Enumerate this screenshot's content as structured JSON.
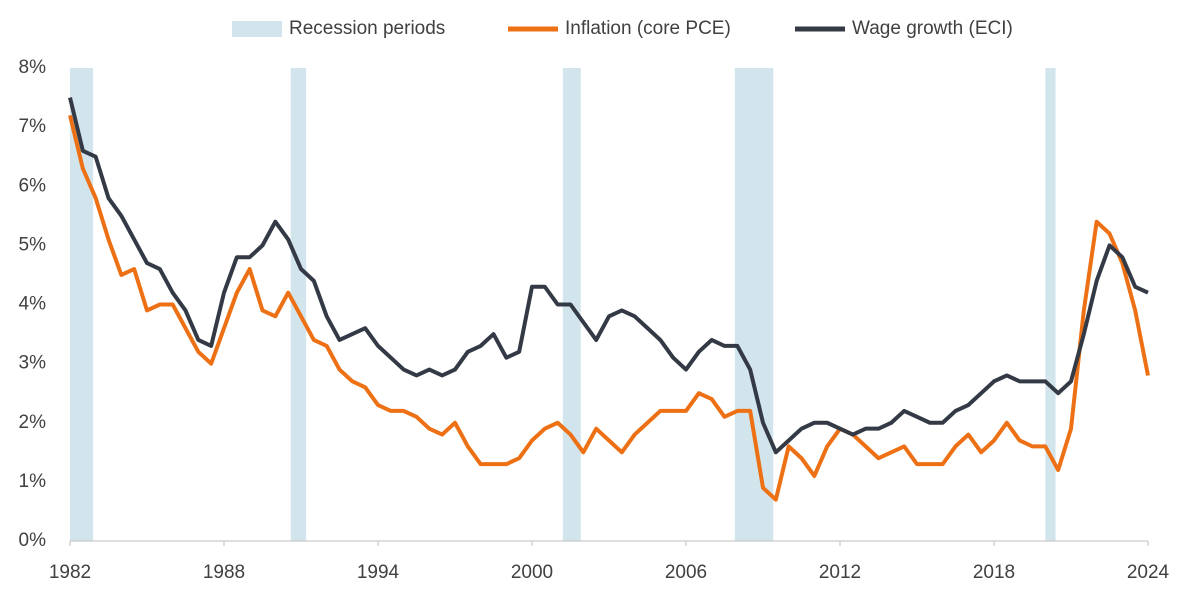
{
  "chart_data": {
    "type": "line",
    "x": [
      1982.0,
      1982.5,
      1983.0,
      1983.5,
      1984.0,
      1984.5,
      1985.0,
      1985.5,
      1986.0,
      1986.5,
      1987.0,
      1987.5,
      1988.0,
      1988.5,
      1989.0,
      1989.5,
      1990.0,
      1990.5,
      1991.0,
      1991.5,
      1992.0,
      1992.5,
      1993.0,
      1993.5,
      1994.0,
      1994.5,
      1995.0,
      1995.5,
      1996.0,
      1996.5,
      1997.0,
      1997.5,
      1998.0,
      1998.5,
      1999.0,
      1999.5,
      2000.0,
      2000.5,
      2001.0,
      2001.5,
      2002.0,
      2002.5,
      2003.0,
      2003.5,
      2004.0,
      2004.5,
      2005.0,
      2005.5,
      2006.0,
      2006.5,
      2007.0,
      2007.5,
      2008.0,
      2008.5,
      2009.0,
      2009.5,
      2010.0,
      2010.5,
      2011.0,
      2011.5,
      2012.0,
      2012.5,
      2013.0,
      2013.5,
      2014.0,
      2014.5,
      2015.0,
      2015.5,
      2016.0,
      2016.5,
      2017.0,
      2017.5,
      2018.0,
      2018.5,
      2019.0,
      2019.5,
      2020.0,
      2020.5,
      2021.0,
      2021.5,
      2022.0,
      2022.5,
      2023.0,
      2023.5,
      2024.0
    ],
    "series": [
      {
        "name": "Inflation (core PCE)",
        "color": "#ed7114",
        "values": [
          7.2,
          6.3,
          5.8,
          5.1,
          4.5,
          4.6,
          3.9,
          4.0,
          4.0,
          3.6,
          3.2,
          3.0,
          3.6,
          4.2,
          4.6,
          3.9,
          3.8,
          4.2,
          3.8,
          3.4,
          3.3,
          2.9,
          2.7,
          2.6,
          2.3,
          2.2,
          2.2,
          2.1,
          1.9,
          1.8,
          2.0,
          1.6,
          1.3,
          1.3,
          1.3,
          1.4,
          1.7,
          1.9,
          2.0,
          1.8,
          1.5,
          1.9,
          1.7,
          1.5,
          1.8,
          2.0,
          2.2,
          2.2,
          2.2,
          2.5,
          2.4,
          2.1,
          2.2,
          2.2,
          0.9,
          0.7,
          1.6,
          1.4,
          1.1,
          1.6,
          1.9,
          1.8,
          1.6,
          1.4,
          1.5,
          1.6,
          1.3,
          1.3,
          1.3,
          1.6,
          1.8,
          1.5,
          1.7,
          2.0,
          1.7,
          1.6,
          1.6,
          1.2,
          1.9,
          3.9,
          5.4,
          5.2,
          4.7,
          3.9,
          2.8
        ]
      },
      {
        "name": "Wage growth (ECI)",
        "color": "#343a45",
        "values": [
          7.5,
          6.6,
          6.5,
          5.8,
          5.5,
          5.1,
          4.7,
          4.6,
          4.2,
          3.9,
          3.4,
          3.3,
          4.2,
          4.8,
          4.8,
          5.0,
          5.4,
          5.1,
          4.6,
          4.4,
          3.8,
          3.4,
          3.5,
          3.6,
          3.3,
          3.1,
          2.9,
          2.8,
          2.9,
          2.8,
          2.9,
          3.2,
          3.3,
          3.5,
          3.1,
          3.2,
          4.3,
          4.3,
          4.0,
          4.0,
          3.7,
          3.4,
          3.8,
          3.9,
          3.8,
          3.6,
          3.4,
          3.1,
          2.9,
          3.2,
          3.4,
          3.3,
          3.3,
          2.9,
          2.0,
          1.5,
          1.7,
          1.9,
          2.0,
          2.0,
          1.9,
          1.8,
          1.9,
          1.9,
          2.0,
          2.2,
          2.1,
          2.0,
          2.0,
          2.2,
          2.3,
          2.5,
          2.7,
          2.8,
          2.7,
          2.7,
          2.7,
          2.5,
          2.7,
          3.5,
          4.4,
          5.0,
          4.8,
          4.3,
          4.2
        ]
      }
    ],
    "recessions": {
      "name": "Recession periods",
      "color": "#d3e5ec",
      "spans": [
        [
          1982.0,
          1982.9
        ],
        [
          1990.6,
          1991.2
        ],
        [
          2001.2,
          2001.9
        ],
        [
          2007.9,
          2009.4
        ],
        [
          2020.0,
          2020.4
        ]
      ]
    },
    "xlim": [
      1982,
      2024
    ],
    "xticks": [
      1982,
      1988,
      1994,
      2000,
      2006,
      2012,
      2018,
      2024
    ],
    "ylim": [
      0,
      8
    ],
    "yticks": [
      {
        "value": 0,
        "label": "0%"
      },
      {
        "value": 1,
        "label": "1%"
      },
      {
        "value": 2,
        "label": "2%"
      },
      {
        "value": 3,
        "label": "3%"
      },
      {
        "value": 4,
        "label": "4%"
      },
      {
        "value": 5,
        "label": "5%"
      },
      {
        "value": 6,
        "label": "6%"
      },
      {
        "value": 7,
        "label": "7%"
      },
      {
        "value": 8,
        "label": "8%"
      }
    ],
    "legend": "top"
  }
}
